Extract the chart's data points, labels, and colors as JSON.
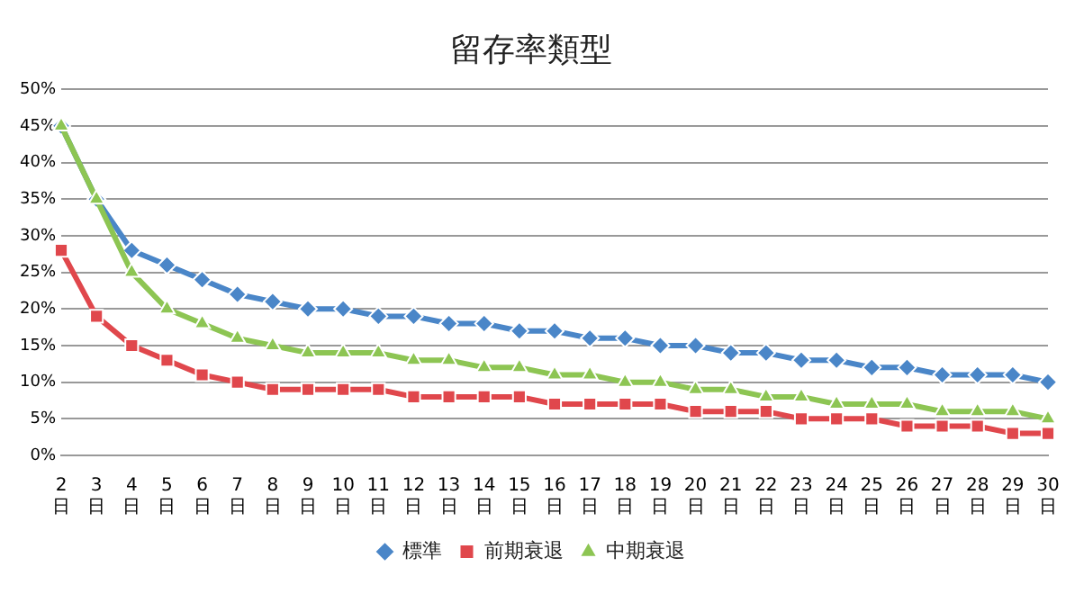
{
  "chart_data": {
    "type": "line",
    "title": "留存率類型",
    "categories": [
      "2日",
      "3日",
      "4日",
      "5日",
      "6日",
      "7日",
      "8日",
      "9日",
      "10日",
      "11日",
      "12日",
      "13日",
      "14日",
      "15日",
      "16日",
      "17日",
      "18日",
      "19日",
      "20日",
      "21日",
      "22日",
      "23日",
      "24日",
      "25日",
      "26日",
      "27日",
      "28日",
      "29日",
      "30日"
    ],
    "series": [
      {
        "name": "標準",
        "color": "#4a86c8",
        "marker": "diamond",
        "values": [
          45,
          35,
          28,
          26,
          24,
          22,
          21,
          20,
          20,
          19,
          19,
          18,
          18,
          17,
          17,
          16,
          16,
          15,
          15,
          14,
          14,
          13,
          13,
          12,
          12,
          11,
          11,
          11,
          10
        ]
      },
      {
        "name": "前期衰退",
        "color": "#e0474c",
        "marker": "square",
        "values": [
          28,
          19,
          15,
          13,
          11,
          10,
          9,
          9,
          9,
          9,
          8,
          8,
          8,
          8,
          7,
          7,
          7,
          7,
          6,
          6,
          6,
          5,
          5,
          5,
          4,
          4,
          4,
          3,
          3
        ]
      },
      {
        "name": "中期衰退",
        "color": "#8dc553",
        "marker": "triangle",
        "values": [
          45,
          35,
          25,
          20,
          18,
          16,
          15,
          14,
          14,
          14,
          13,
          13,
          12,
          12,
          11,
          11,
          10,
          10,
          9,
          9,
          8,
          8,
          7,
          7,
          7,
          6,
          6,
          6,
          5
        ]
      }
    ],
    "ylim": [
      0,
      50
    ],
    "yticks": [
      {
        "value": 0,
        "label": "0%"
      },
      {
        "value": 5,
        "label": "5%"
      },
      {
        "value": 10,
        "label": "10%"
      },
      {
        "value": 15,
        "label": "15%"
      },
      {
        "value": 20,
        "label": "20%"
      },
      {
        "value": 25,
        "label": "25%"
      },
      {
        "value": 30,
        "label": "30%"
      },
      {
        "value": 35,
        "label": "35%"
      },
      {
        "value": 40,
        "label": "40%"
      },
      {
        "value": 45,
        "label": "45%"
      },
      {
        "value": 50,
        "label": "50%"
      }
    ],
    "grid": "y",
    "legend": "bottom",
    "line_style": "solid"
  }
}
